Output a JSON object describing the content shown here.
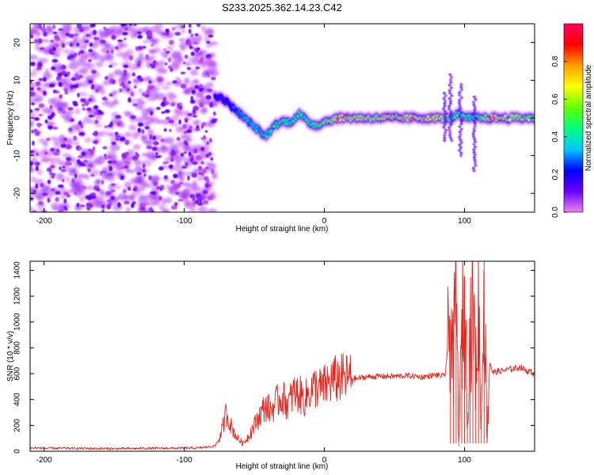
{
  "title": "S233.2025.362.14.23.C42",
  "colors": {
    "signal": "#e8251e",
    "axis": "#000000",
    "background": "#ffffff"
  },
  "chart_data": [
    {
      "type": "heatmap",
      "name": "spectrogram",
      "xlabel": "Height of straight line (km)",
      "ylabel": "Frequency (Hz)",
      "xlim": [
        -210,
        150
      ],
      "ylim": [
        -25,
        25
      ],
      "xticks": [
        -200,
        -100,
        0,
        100
      ],
      "yticks": [
        -20,
        -10,
        0,
        10,
        20
      ],
      "colorbar": {
        "label": "Normalized spectral amplitude",
        "range": [
          0,
          1
        ],
        "ticks": [
          "0.0",
          "0.2",
          "0.4",
          "0.6",
          "0.8"
        ],
        "colormap": [
          "#ee82ee",
          "#6a00ff",
          "#0000ff",
          "#00c8ff",
          "#00ff80",
          "#64ff00",
          "#ffff00",
          "#ffa000",
          "#ff0000",
          "#ff0060"
        ]
      },
      "noise_region_km": [
        -210,
        -78
      ],
      "ridge": {
        "km": [
          -78,
          -72,
          -66,
          -60,
          -54,
          -48,
          -42,
          -36,
          -30,
          -24,
          -18,
          -12,
          -6,
          0,
          10,
          30,
          60,
          80,
          90,
          95,
          100,
          105,
          110,
          120,
          150
        ],
        "freq": [
          6,
          5,
          3,
          1,
          -1,
          -3,
          -5,
          -2,
          -1,
          -1,
          1,
          -1,
          -2,
          -1,
          0,
          0,
          0,
          0,
          0,
          1,
          0,
          0,
          0,
          0,
          0
        ],
        "amp": [
          0.2,
          0.15,
          0.25,
          0.35,
          0.35,
          0.4,
          0.4,
          0.45,
          0.5,
          0.5,
          0.5,
          0.5,
          0.55,
          0.6,
          0.8,
          0.7,
          0.75,
          0.75,
          0.55,
          0.5,
          0.55,
          0.45,
          0.55,
          0.8,
          0.6
        ]
      }
    },
    {
      "type": "line",
      "name": "snr",
      "xlabel": "Height of straight line (km)",
      "ylabel": "SNR (10 * v/v)",
      "xlim": [
        -210,
        150
      ],
      "ylim": [
        0,
        1470
      ],
      "xticks": [
        -200,
        -100,
        0,
        100
      ],
      "yticks": [
        0,
        200,
        400,
        600,
        800,
        1000,
        1200,
        1400
      ],
      "series": [
        {
          "name": "SNR",
          "x": [
            -210,
            -150,
            -90,
            -78,
            -74,
            -70,
            -66,
            -62,
            -58,
            -54,
            -50,
            -46,
            -42,
            -38,
            -34,
            -30,
            -26,
            -22,
            -18,
            -14,
            -10,
            -6,
            -2,
            2,
            6,
            10,
            14,
            18,
            22,
            30,
            40,
            50,
            60,
            70,
            80,
            86,
            90,
            92,
            94,
            96,
            98,
            100,
            102,
            104,
            106,
            108,
            110,
            112,
            114,
            116,
            118,
            120,
            125,
            130,
            135,
            140,
            145,
            150
          ],
          "y": [
            25,
            20,
            25,
            40,
            120,
            300,
            180,
            100,
            60,
            120,
            200,
            280,
            350,
            320,
            380,
            420,
            360,
            450,
            440,
            400,
            470,
            500,
            480,
            520,
            550,
            560,
            565,
            570,
            560,
            575,
            580,
            580,
            585,
            575,
            590,
            580,
            1020,
            650,
            1300,
            40,
            900,
            1250,
            300,
            950,
            1150,
            600,
            1100,
            200,
            1470,
            80,
            700,
            610,
            620,
            630,
            640,
            650,
            620,
            600
          ]
        }
      ]
    }
  ]
}
